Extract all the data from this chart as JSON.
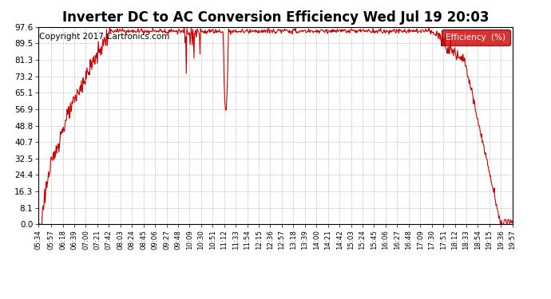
{
  "title": "Inverter DC to AC Conversion Efficiency Wed Jul 19 20:03",
  "copyright": "Copyright 2017 Cartronics.com",
  "legend_label": "Efficiency  (%)",
  "legend_bg": "#cc0000",
  "legend_text_color": "#ffffff",
  "line_color": "#cc0000",
  "bg_color": "#ffffff",
  "plot_bg_color": "#ffffff",
  "grid_color": "#bbbbbb",
  "title_fontsize": 12,
  "copyright_fontsize": 7.5,
  "ytick_labels": [
    "0.0",
    "8.1",
    "16.3",
    "24.4",
    "32.5",
    "40.7",
    "48.8",
    "56.9",
    "65.1",
    "73.2",
    "81.3",
    "89.5",
    "97.6"
  ],
  "ytick_values": [
    0.0,
    8.1,
    16.3,
    24.4,
    32.5,
    40.7,
    48.8,
    56.9,
    65.1,
    73.2,
    81.3,
    89.5,
    97.6
  ],
  "ymin": 0.0,
  "ymax": 97.6,
  "xtick_labels": [
    "05:34",
    "05:57",
    "06:18",
    "06:39",
    "07:00",
    "07:21",
    "07:42",
    "08:03",
    "08:24",
    "08:45",
    "09:06",
    "09:27",
    "09:48",
    "10:09",
    "10:30",
    "10:51",
    "11:12",
    "11:33",
    "11:54",
    "12:15",
    "12:36",
    "12:57",
    "13:18",
    "13:39",
    "14:00",
    "14:21",
    "14:42",
    "15:03",
    "15:24",
    "15:45",
    "16:06",
    "16:27",
    "16:48",
    "17:09",
    "17:30",
    "17:51",
    "18:12",
    "18:33",
    "18:54",
    "19:15",
    "19:36",
    "19:57"
  ]
}
